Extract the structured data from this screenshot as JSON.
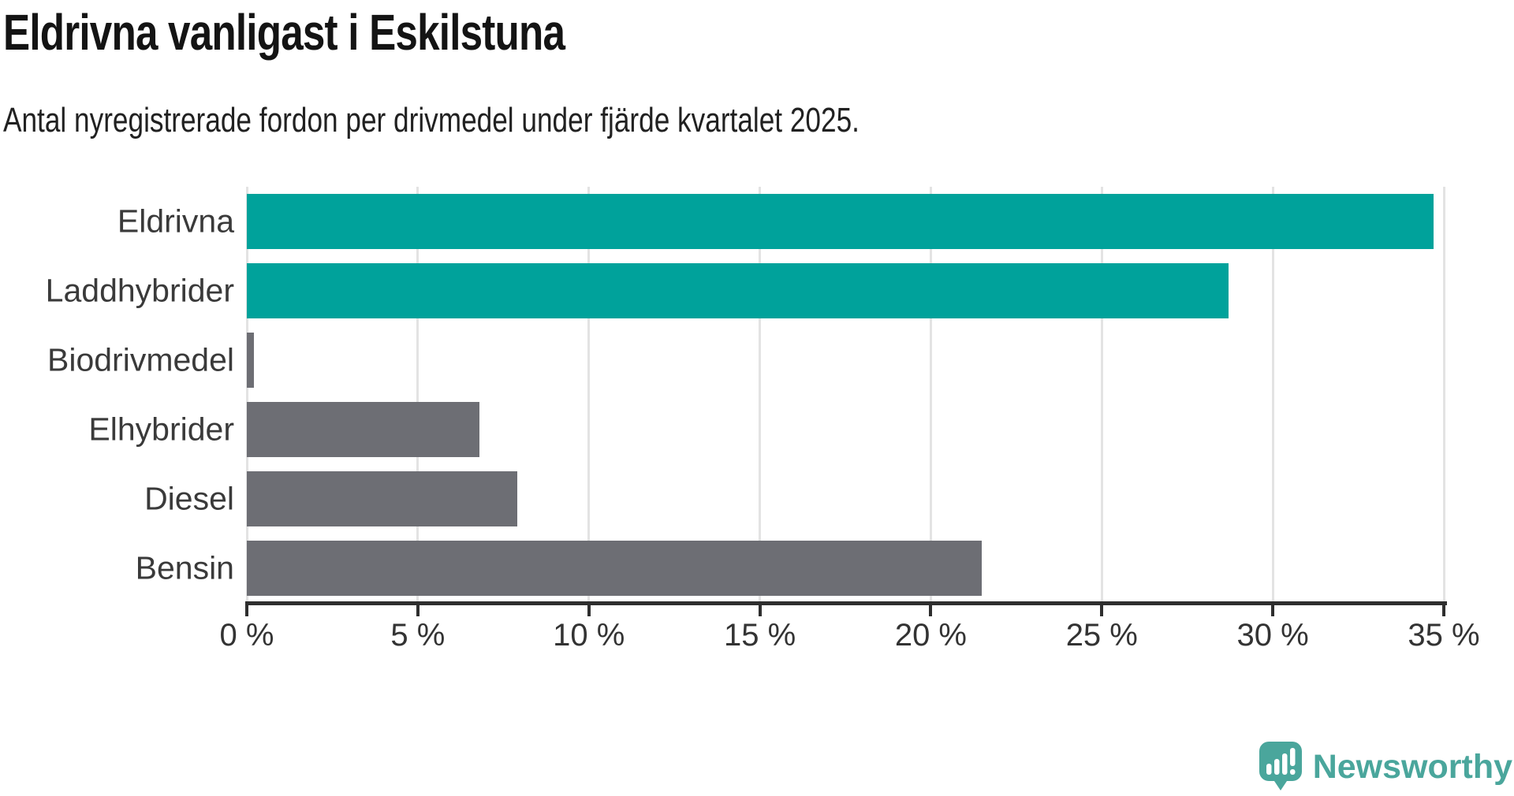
{
  "header": {
    "title": "Eldrivna vanligast i Eskilstuna",
    "subtitle": "Antal nyregistrerade fordon per drivmedel under fjärde kvartalet 2025."
  },
  "chart_data": {
    "type": "bar",
    "orientation": "horizontal",
    "title": "Eldrivna vanligast i Eskilstuna",
    "subtitle": "Antal nyregistrerade fordon per drivmedel under fjärde kvartalet 2025.",
    "categories": [
      "Eldrivna",
      "Laddhybrider",
      "Biodrivmedel",
      "Elhybrider",
      "Diesel",
      "Bensin"
    ],
    "values": [
      34.7,
      28.7,
      0.2,
      6.8,
      7.9,
      21.5
    ],
    "unit": "%",
    "xlabel": "",
    "ylabel": "",
    "xlim": [
      0,
      35
    ],
    "x_ticks": [
      0,
      5,
      10,
      15,
      20,
      25,
      30,
      35
    ],
    "x_tick_labels": [
      "0 %",
      "5 %",
      "10 %",
      "15 %",
      "20 %",
      "25 %",
      "30 %",
      "35 %"
    ],
    "bar_colors": [
      "#00a29b",
      "#00a29b",
      "#6d6e74",
      "#6d6e74",
      "#6d6e74",
      "#6d6e74"
    ],
    "grid": true,
    "legend": false
  },
  "colors": {
    "accent_teal": "#00a29b",
    "bar_gray": "#6d6e74",
    "grid": "#e3e3e3",
    "axis": "#2e2e2e",
    "logo_teal": "#4aa69c"
  },
  "branding": {
    "logo_text": "Newsworthy",
    "logo_icon": "newsworthy-speech-bubble-chart-icon"
  }
}
